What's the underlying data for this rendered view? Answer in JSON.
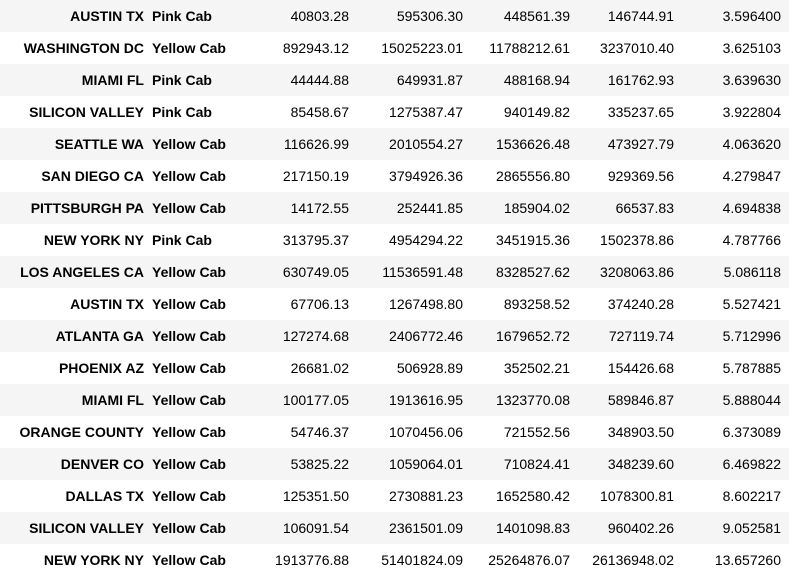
{
  "table": {
    "rows": [
      {
        "city": "AUSTIN TX",
        "company": "Pink Cab",
        "v1": "40803.28",
        "v2": "595306.30",
        "v3": "448561.39",
        "v4": "146744.91",
        "v5": "3.596400"
      },
      {
        "city": "WASHINGTON DC",
        "company": "Yellow Cab",
        "v1": "892943.12",
        "v2": "15025223.01",
        "v3": "11788212.61",
        "v4": "3237010.40",
        "v5": "3.625103"
      },
      {
        "city": "MIAMI FL",
        "company": "Pink Cab",
        "v1": "44444.88",
        "v2": "649931.87",
        "v3": "488168.94",
        "v4": "161762.93",
        "v5": "3.639630"
      },
      {
        "city": "SILICON VALLEY",
        "company": "Pink Cab",
        "v1": "85458.67",
        "v2": "1275387.47",
        "v3": "940149.82",
        "v4": "335237.65",
        "v5": "3.922804"
      },
      {
        "city": "SEATTLE WA",
        "company": "Yellow Cab",
        "v1": "116626.99",
        "v2": "2010554.27",
        "v3": "1536626.48",
        "v4": "473927.79",
        "v5": "4.063620"
      },
      {
        "city": "SAN DIEGO CA",
        "company": "Yellow Cab",
        "v1": "217150.19",
        "v2": "3794926.36",
        "v3": "2865556.80",
        "v4": "929369.56",
        "v5": "4.279847"
      },
      {
        "city": "PITTSBURGH PA",
        "company": "Yellow Cab",
        "v1": "14172.55",
        "v2": "252441.85",
        "v3": "185904.02",
        "v4": "66537.83",
        "v5": "4.694838"
      },
      {
        "city": "NEW YORK NY",
        "company": "Pink Cab",
        "v1": "313795.37",
        "v2": "4954294.22",
        "v3": "3451915.36",
        "v4": "1502378.86",
        "v5": "4.787766"
      },
      {
        "city": "LOS ANGELES CA",
        "company": "Yellow Cab",
        "v1": "630749.05",
        "v2": "11536591.48",
        "v3": "8328527.62",
        "v4": "3208063.86",
        "v5": "5.086118"
      },
      {
        "city": "AUSTIN TX",
        "company": "Yellow Cab",
        "v1": "67706.13",
        "v2": "1267498.80",
        "v3": "893258.52",
        "v4": "374240.28",
        "v5": "5.527421"
      },
      {
        "city": "ATLANTA GA",
        "company": "Yellow Cab",
        "v1": "127274.68",
        "v2": "2406772.46",
        "v3": "1679652.72",
        "v4": "727119.74",
        "v5": "5.712996"
      },
      {
        "city": "PHOENIX AZ",
        "company": "Yellow Cab",
        "v1": "26681.02",
        "v2": "506928.89",
        "v3": "352502.21",
        "v4": "154426.68",
        "v5": "5.787885"
      },
      {
        "city": "MIAMI FL",
        "company": "Yellow Cab",
        "v1": "100177.05",
        "v2": "1913616.95",
        "v3": "1323770.08",
        "v4": "589846.87",
        "v5": "5.888044"
      },
      {
        "city": "ORANGE COUNTY",
        "company": "Yellow Cab",
        "v1": "54746.37",
        "v2": "1070456.06",
        "v3": "721552.56",
        "v4": "348903.50",
        "v5": "6.373089"
      },
      {
        "city": "DENVER CO",
        "company": "Yellow Cab",
        "v1": "53825.22",
        "v2": "1059064.01",
        "v3": "710824.41",
        "v4": "348239.60",
        "v5": "6.469822"
      },
      {
        "city": "DALLAS TX",
        "company": "Yellow Cab",
        "v1": "125351.50",
        "v2": "2730881.23",
        "v3": "1652580.42",
        "v4": "1078300.81",
        "v5": "8.602217"
      },
      {
        "city": "SILICON VALLEY",
        "company": "Yellow Cab",
        "v1": "106091.54",
        "v2": "2361501.09",
        "v3": "1401098.83",
        "v4": "960402.26",
        "v5": "9.052581"
      },
      {
        "city": "NEW YORK NY",
        "company": "Yellow Cab",
        "v1": "1913776.88",
        "v2": "51401824.09",
        "v3": "25264876.07",
        "v4": "26136948.02",
        "v5": "13.657260"
      }
    ]
  }
}
